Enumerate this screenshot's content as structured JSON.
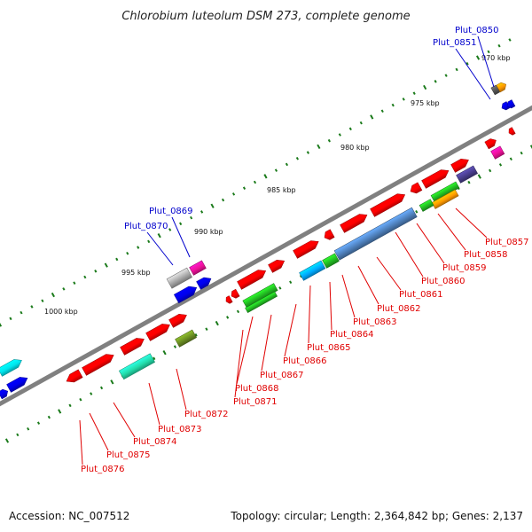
{
  "title": "Chlorobium luteolum DSM 273, complete genome",
  "footer": {
    "accession": "Accession: NC_007512",
    "stats": "Topology: circular; Length: 2,364,842 bp; Genes: 2,137"
  },
  "scale_labels": [
    "970 kbp",
    "975 kbp",
    "980 kbp",
    "985 kbp",
    "990 kbp",
    "995 kbp",
    "1000 kbp"
  ],
  "gene_labels_top": [
    "Plut_0850",
    "Plut_0851",
    "Plut_0869",
    "Plut_0870"
  ],
  "gene_labels_bottom": [
    "Plut_0857",
    "Plut_0858",
    "Plut_0859",
    "Plut_0860",
    "Plut_0861",
    "Plut_0862",
    "Plut_0863",
    "Plut_0864",
    "Plut_0865",
    "Plut_0866",
    "Plut_0867",
    "Plut_0868",
    "Plut_0871",
    "Plut_0872",
    "Plut_0873",
    "Plut_0874",
    "Plut_0875",
    "Plut_0876"
  ],
  "colors": {
    "backbone": "#808080",
    "cds_red": "#ff0000",
    "tick_green": "#1a7a1a",
    "label_red": "#e00000",
    "label_blue": "#0000cc",
    "blue": "#0000ee",
    "cyan": "#00e5ee",
    "green": "#22bb22",
    "magenta": "#ee1199",
    "orange": "#ff9900",
    "gray": "#aaaaaa",
    "olive": "#6b8e23",
    "steelblue": "#4f81bd",
    "slate": "#483d8b",
    "skyblue": "#00aaff",
    "teal": "#22ddaa"
  }
}
